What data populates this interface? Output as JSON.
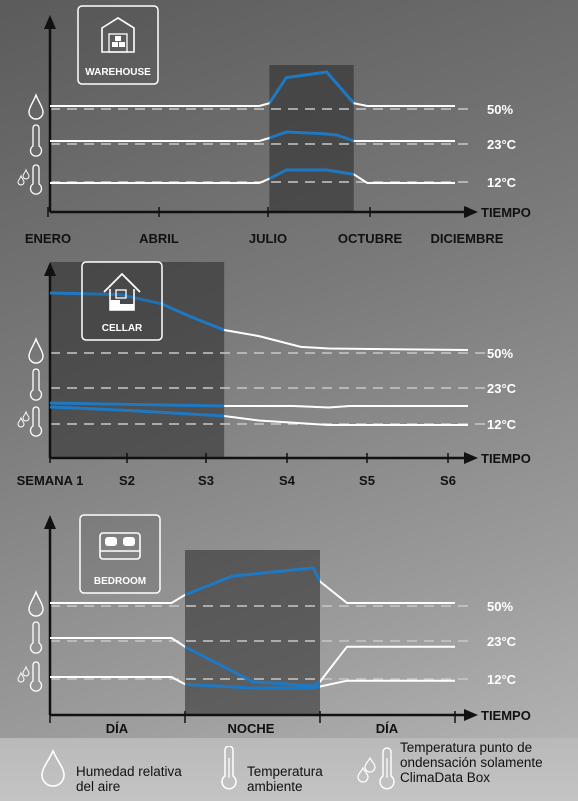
{
  "colors": {
    "accent_blue": "#1e78c2",
    "line_white": "#ffffff",
    "dashed": "#c8c8c8",
    "shade": "rgba(40,40,40,0.55)"
  },
  "chart_data": [
    {
      "type": "line",
      "name": "warehouse",
      "icon_label": "WAREHOUSE",
      "icon": "warehouse-icon",
      "x_tick_labels": [
        "ENERO",
        "ABRIL",
        "JULIO",
        "OCTUBRE",
        "DICIEMBRE"
      ],
      "x_axis_title": "TIEMPO",
      "level_labels": [
        "50%",
        "23°C",
        "12°C"
      ],
      "xlim": [
        0,
        12
      ],
      "shaded_period": [
        6.5,
        9
      ],
      "series": [
        {
          "kind": "humidity",
          "x": [
            0,
            6.2,
            6.5,
            7,
            8.2,
            9,
            9.4,
            12
          ],
          "y": [
            50,
            50,
            51,
            60,
            62,
            51,
            50,
            50
          ]
        },
        {
          "kind": "ambient",
          "x": [
            0,
            6.2,
            6.5,
            7,
            8,
            8.5,
            9,
            12
          ],
          "y": [
            23,
            23,
            24,
            26,
            25.5,
            25,
            23,
            23
          ]
        },
        {
          "kind": "dewpoint",
          "x": [
            0,
            6.2,
            6.5,
            7,
            8.2,
            9,
            9.4,
            12
          ],
          "y": [
            12,
            12,
            13,
            15,
            15,
            14,
            12,
            12
          ]
        }
      ]
    },
    {
      "type": "line",
      "name": "cellar",
      "icon_label": "CELLAR",
      "icon": "cellar-icon",
      "x_tick_labels": [
        "SEMANA 1",
        "S2",
        "S3",
        "S4",
        "S5",
        "S6"
      ],
      "x_axis_title": "TIEMPO",
      "level_labels": [
        "50%",
        "23°C",
        "12°C"
      ],
      "xlim": [
        0,
        6
      ],
      "shaded_period": [
        0,
        2.5
      ],
      "series": [
        {
          "kind": "humidity",
          "x": [
            0,
            1,
            1.6,
            2,
            2.5,
            3,
            3.6,
            4,
            6
          ],
          "y": [
            87,
            86,
            80,
            72,
            63,
            59,
            52,
            51,
            50
          ]
        },
        {
          "kind": "ambient",
          "x": [
            0,
            2.5,
            3.5,
            4,
            4.3,
            6
          ],
          "y": [
            13,
            12,
            12,
            11.5,
            12,
            12
          ]
        },
        {
          "kind": "dewpoint",
          "x": [
            0,
            1,
            2.5,
            3,
            4,
            4.5,
            6
          ],
          "y": [
            12,
            11,
            9,
            7.5,
            6,
            6,
            6
          ]
        }
      ]
    },
    {
      "type": "line",
      "name": "bedroom",
      "icon_label": "BEDROOM",
      "icon": "bedroom-icon",
      "x_tick_labels": [
        "DÍA",
        "NOCHE",
        "DÍA"
      ],
      "x_axis_title": "TIEMPO",
      "level_labels": [
        "50%",
        "23°C",
        "12°C"
      ],
      "xlim": [
        0,
        3
      ],
      "shaded_period": [
        1,
        2
      ],
      "series": [
        {
          "kind": "humidity",
          "x": [
            0,
            0.9,
            1,
            1.35,
            1.95,
            2,
            2.2,
            3
          ],
          "y": [
            50,
            50,
            53,
            60,
            63,
            58,
            50,
            50
          ]
        },
        {
          "kind": "ambient",
          "x": [
            0,
            0.9,
            1,
            1.5,
            1.95,
            2,
            2.2,
            3
          ],
          "y": [
            23,
            23,
            21,
            13,
            12,
            13,
            21,
            21
          ]
        },
        {
          "kind": "dewpoint",
          "x": [
            0,
            0.9,
            1,
            1.5,
            1.95,
            2.2,
            3
          ],
          "y": [
            12,
            12,
            10,
            9,
            9,
            11,
            11
          ]
        }
      ]
    }
  ],
  "legend": {
    "humidity": [
      "Humedad relativa",
      "del aire"
    ],
    "ambient": [
      "Temperatura",
      "ambiente"
    ],
    "dewpoint": [
      "Temperatura punto de",
      "ondensación solamente",
      "ClimaData Box"
    ]
  }
}
